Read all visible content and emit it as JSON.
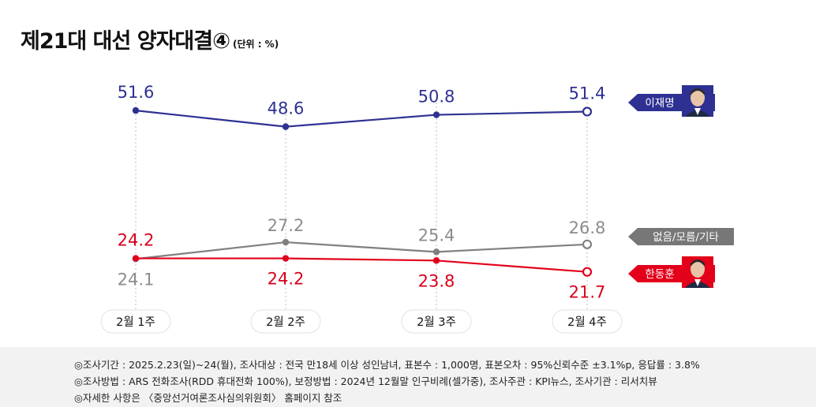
{
  "title": "제21대 대선 양자대결④",
  "unit_label": "(단위 : %)",
  "chart_data": {
    "type": "line",
    "categories": [
      "2월 1주",
      "2월 2주",
      "2월 3주",
      "2월 4주"
    ],
    "series": [
      {
        "name": "이재명",
        "values": [
          51.6,
          48.6,
          50.8,
          51.4
        ],
        "color": "#2e3192",
        "label_color": "#2e3192"
      },
      {
        "name": "없음/모름/기타",
        "values": [
          24.1,
          27.2,
          25.4,
          26.8
        ],
        "color": "#808080",
        "label_color": "#8c8c8c"
      },
      {
        "name": "한동훈",
        "values": [
          24.2,
          24.2,
          23.8,
          21.7
        ],
        "color": "#e2001a",
        "label_color": "#d7001c"
      }
    ],
    "ylim": [
      18,
      56
    ],
    "grid": "vertical-dotted"
  },
  "footer": {
    "note1": "◎조사기간 : 2025.2.23(일)~24(월), 조사대상 : 전국 만18세 이상 성인남녀, 표본수 : 1,000명, 표본오차 : 95%신뢰수준 ±3.1%p, 응답률 : 3.8%",
    "note2": "◎조사방법 : ARS 전화조사(RDD 휴대전화 100%), 보정방법 : 2024년 12월말 인구비례(셀가중), 조사주관 : KPI뉴스, 조사기관 : 리서치뷰",
    "note3": "◎자세한 사항은 〈중앙선거여론조사심의위원회〉 홈페이지 참조"
  }
}
